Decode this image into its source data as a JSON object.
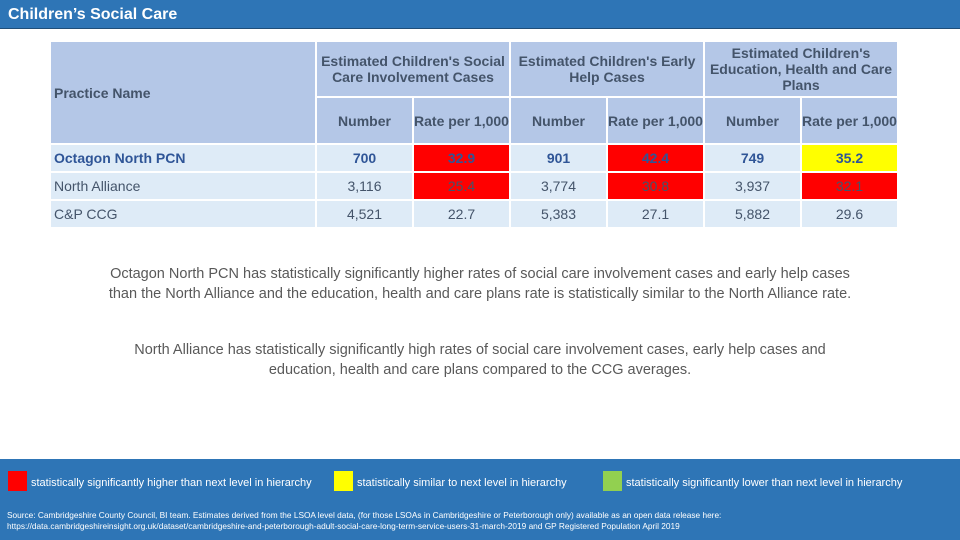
{
  "title": "Children’s Social Care",
  "table": {
    "practice_header": "Practice Name",
    "groups": [
      "Estimated Children's Social Care Involvement Cases",
      "Estimated Children's Early Help Cases",
      "Estimated Children's Education, Health and Care Plans"
    ],
    "subheaders": [
      "Number",
      "Rate per 1,000"
    ],
    "rows": [
      {
        "name": "Octagon North PCN",
        "cells": [
          "700",
          "32.9",
          "901",
          "42.4",
          "749",
          "35.2"
        ],
        "highlight": [
          "none",
          "red",
          "none",
          "red",
          "none",
          "yellow"
        ]
      },
      {
        "name": "North Alliance",
        "cells": [
          "3,116",
          "25.4",
          "3,774",
          "30.8",
          "3,937",
          "32.1"
        ],
        "highlight": [
          "none",
          "red",
          "none",
          "red",
          "none",
          "red"
        ]
      },
      {
        "name": "C&P CCG",
        "cells": [
          "4,521",
          "22.7",
          "5,383",
          "27.1",
          "5,882",
          "29.6"
        ],
        "highlight": [
          "none",
          "none",
          "none",
          "none",
          "none",
          "none"
        ]
      }
    ]
  },
  "paragraphs": [
    "Octagon North PCN has statistically significantly higher rates of social care involvement cases and early help cases than the North Alliance and the education, health and care plans rate is statistically similar to the North Alliance rate.",
    "North Alliance has statistically significantly high rates of social care involvement cases, early help cases and education, health and care plans compared to the CCG averages."
  ],
  "legend": {
    "items": [
      {
        "label": "statistically significantly higher than next level in hierarchy",
        "color": "#ff0000"
      },
      {
        "label": "statistically similar to next level in hierarchy",
        "color": "#ffff00"
      },
      {
        "label": "statistically significantly lower than next level in hierarchy",
        "color": "#92d050"
      }
    ],
    "source": "Source: Cambridgeshire County Council, BI team. Estimates derived from the LSOA level data, (for those LSOAs in Cambridgeshire or Peterborough only) available as an open data release here: https://data.cambridgeshireinsight.org.uk/dataset/cambridgeshire-and-peterborough-adult-social-care-long-term-service-users-31-march-2019 and GP Registered Population April 2019"
  }
}
